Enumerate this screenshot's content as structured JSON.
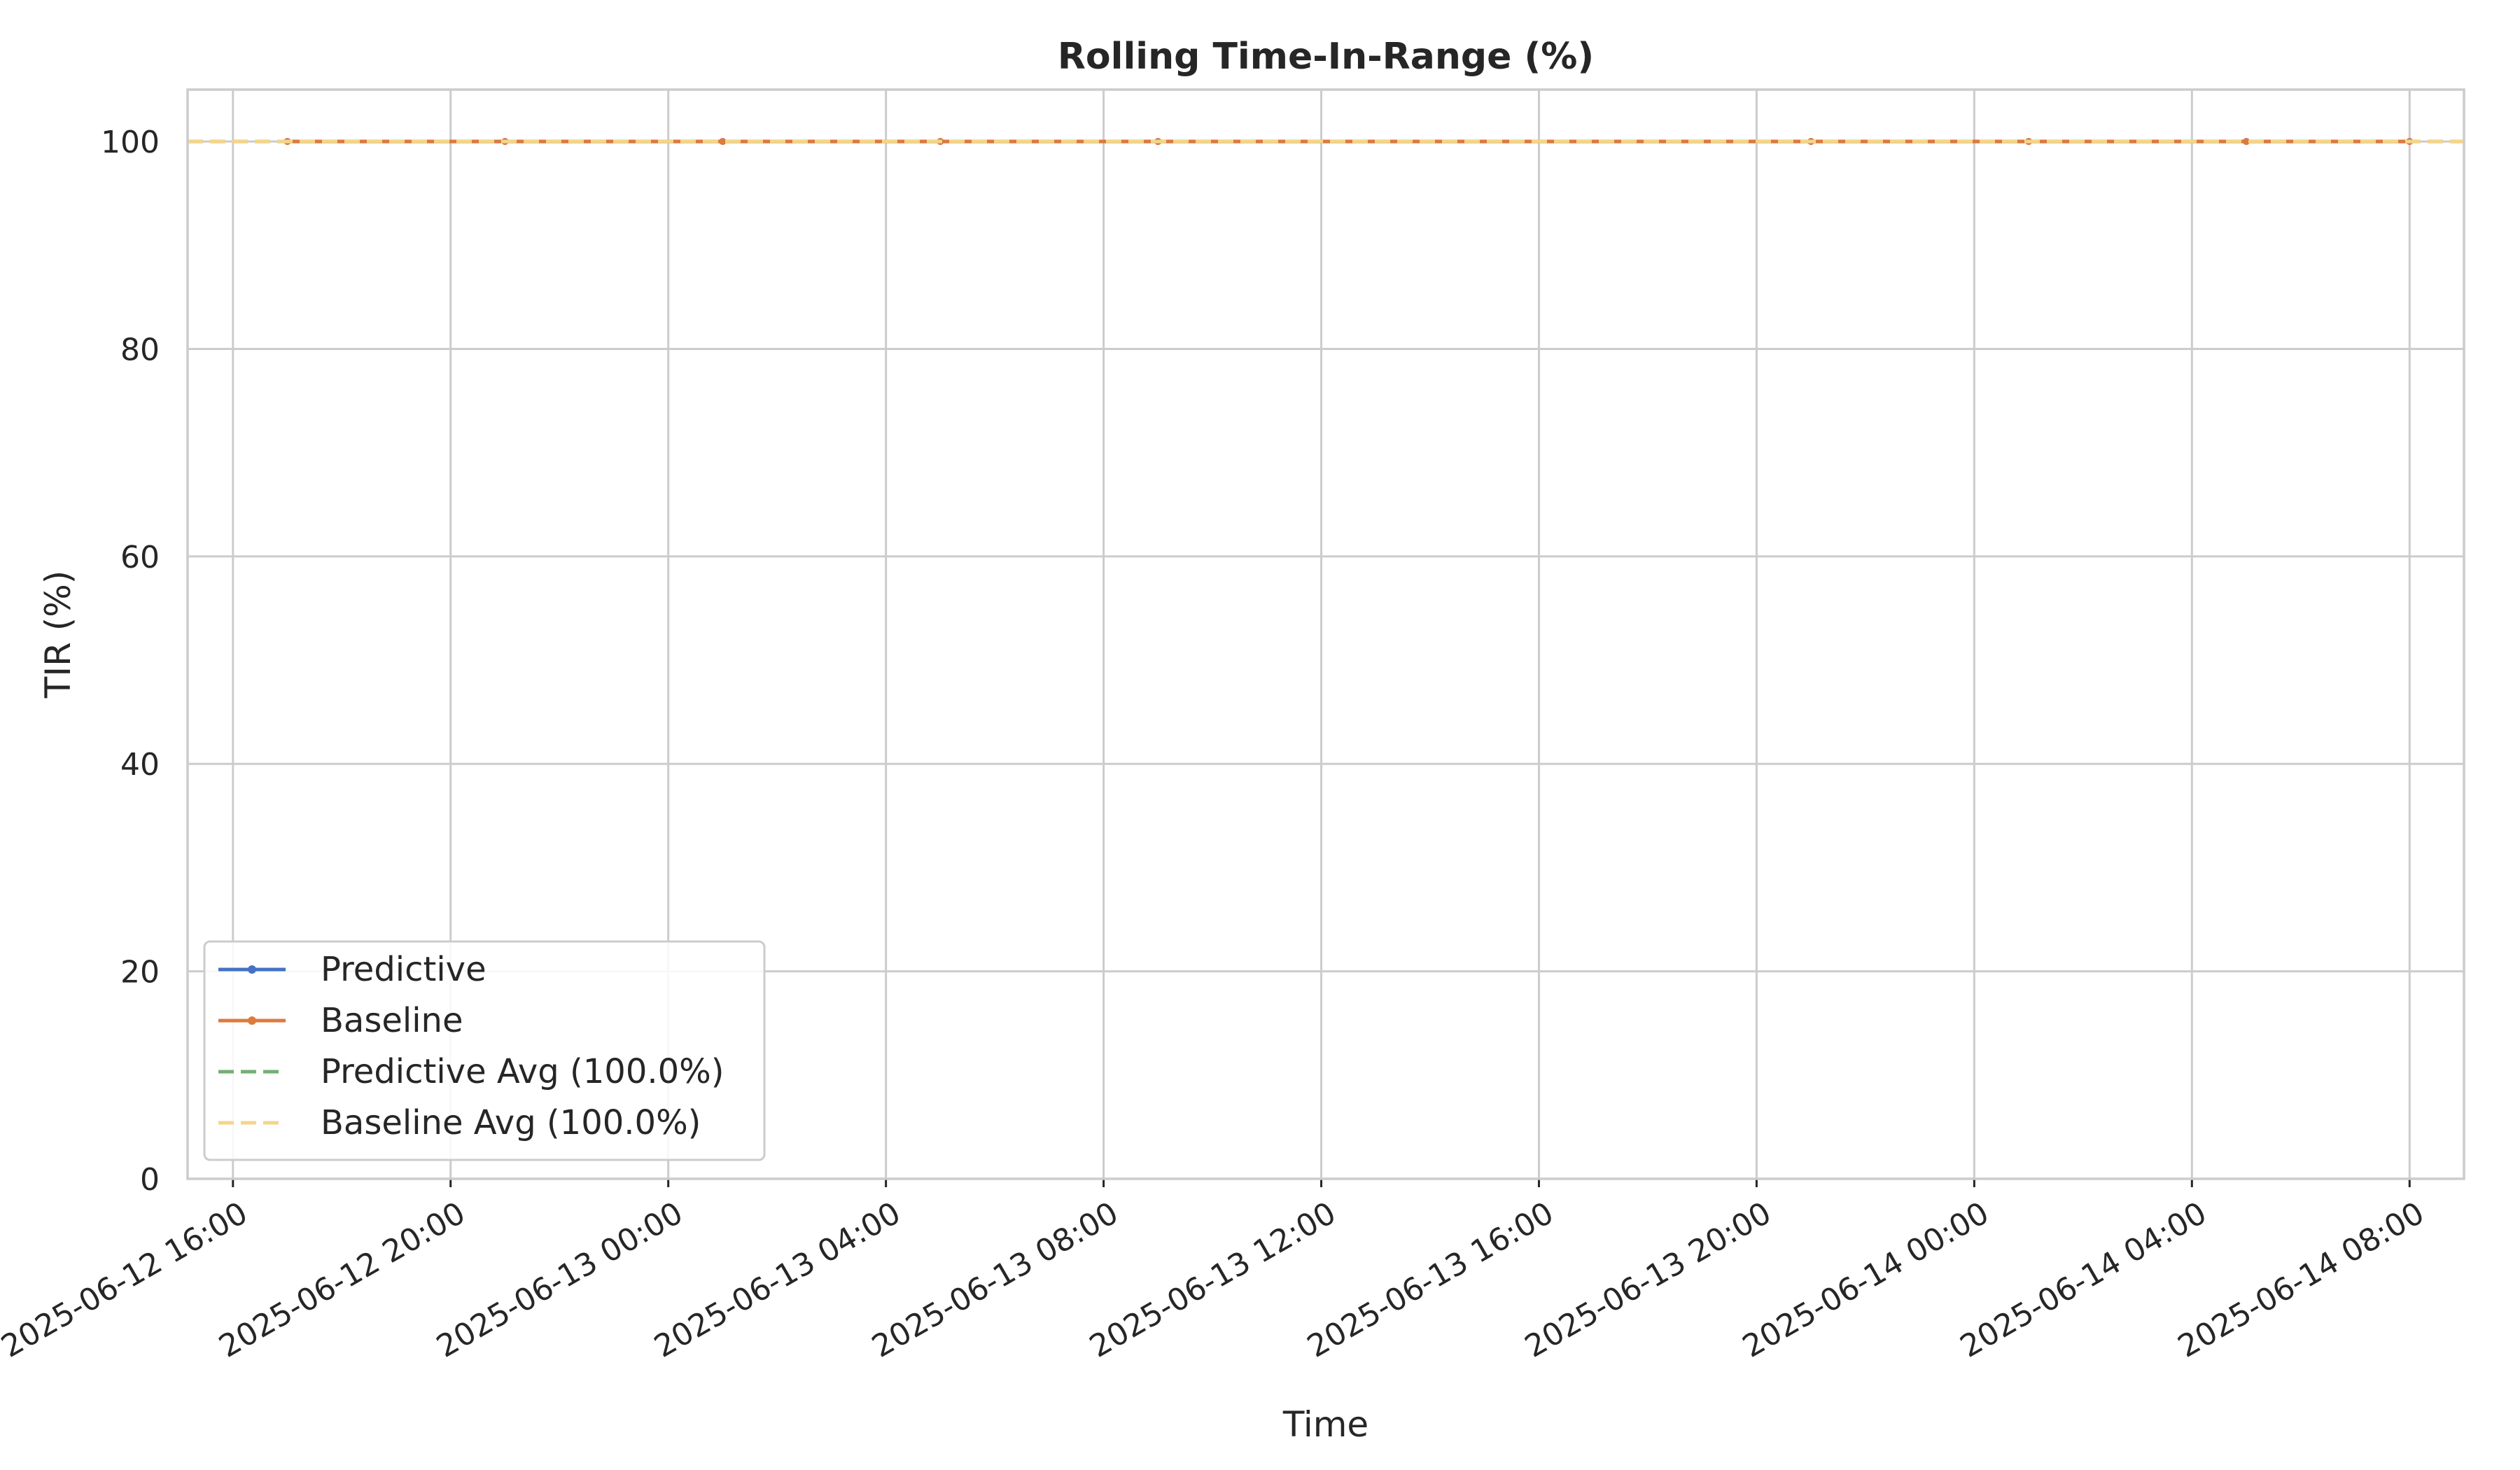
{
  "chart_data": {
    "type": "line",
    "title": "Rolling Time-In-Range (%)",
    "xlabel": "Time",
    "ylabel": "TIR (%)",
    "xlim": [
      "2025-06-12 15:10",
      "2025-06-14 09:00"
    ],
    "ylim": [
      0,
      105
    ],
    "y_ticks": [
      0,
      20,
      40,
      60,
      80,
      100
    ],
    "x_ticks": [
      "2025-06-12 16:00",
      "2025-06-12 20:00",
      "2025-06-13 00:00",
      "2025-06-13 04:00",
      "2025-06-13 08:00",
      "2025-06-13 12:00",
      "2025-06-13 16:00",
      "2025-06-13 20:00",
      "2025-06-14 00:00",
      "2025-06-14 04:00",
      "2025-06-14 08:00"
    ],
    "grid": true,
    "legend_position": "lower-left",
    "series": [
      {
        "name": "Predictive",
        "color": "#4472c4",
        "style": "solid-marker",
        "x": [
          "2025-06-12 17:00",
          "2025-06-12 21:00",
          "2025-06-13 01:00",
          "2025-06-13 05:00",
          "2025-06-13 09:00",
          "2025-06-13 21:00",
          "2025-06-14 01:00",
          "2025-06-14 05:00",
          "2025-06-14 08:00"
        ],
        "y": [
          100,
          100,
          100,
          100,
          100,
          100,
          100,
          100,
          100
        ]
      },
      {
        "name": "Baseline",
        "color": "#dd7a3c",
        "style": "solid-marker",
        "x": [
          "2025-06-12 17:00",
          "2025-06-12 21:00",
          "2025-06-13 01:00",
          "2025-06-13 05:00",
          "2025-06-13 09:00",
          "2025-06-13 21:00",
          "2025-06-14 01:00",
          "2025-06-14 05:00",
          "2025-06-14 08:00"
        ],
        "y": [
          100,
          100,
          100,
          100,
          100,
          100,
          100,
          100,
          100
        ]
      },
      {
        "name": "Predictive Avg (100.0%)",
        "color": "#72b072",
        "style": "dashed",
        "value": 100
      },
      {
        "name": "Baseline Avg (100.0%)",
        "color": "#f5d48a",
        "style": "dashed",
        "value": 100
      }
    ]
  }
}
